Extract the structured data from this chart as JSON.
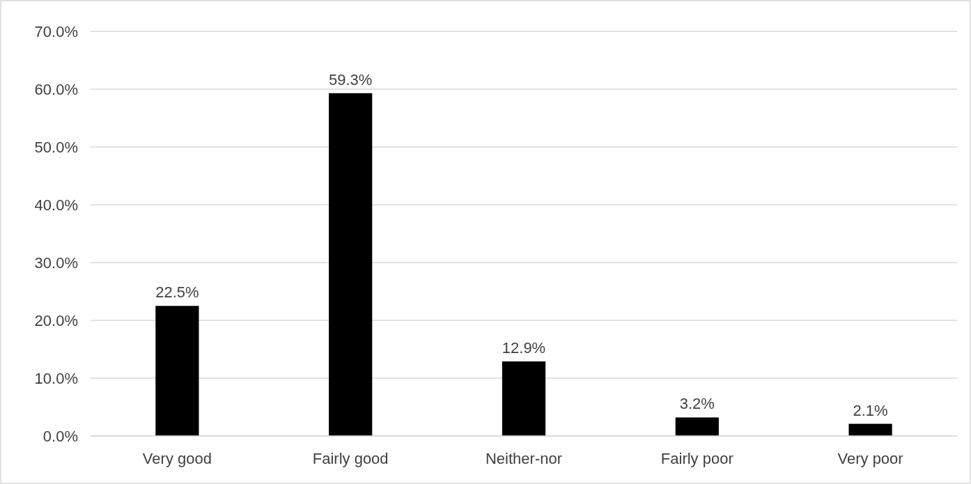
{
  "chart_data": {
    "type": "bar",
    "categories": [
      "Very good",
      "Fairly good",
      "Neither-nor",
      "Fairly poor",
      "Very poor"
    ],
    "values": [
      22.5,
      59.3,
      12.9,
      3.2,
      2.1
    ],
    "value_labels": [
      "22.5%",
      "59.3%",
      "12.9%",
      "3.2%",
      "2.1%"
    ],
    "color": "#000000",
    "ylim": [
      0,
      70
    ],
    "yticks": [
      {
        "value": 0,
        "label": "0.0%"
      },
      {
        "value": 10,
        "label": "10.0%"
      },
      {
        "value": 20,
        "label": "20.0%"
      },
      {
        "value": 30,
        "label": "30.0%"
      },
      {
        "value": 40,
        "label": "40.0%"
      },
      {
        "value": 50,
        "label": "50.0%"
      },
      {
        "value": 60,
        "label": "60.0%"
      },
      {
        "value": 70,
        "label": "70.0%"
      }
    ],
    "grid": "y"
  }
}
